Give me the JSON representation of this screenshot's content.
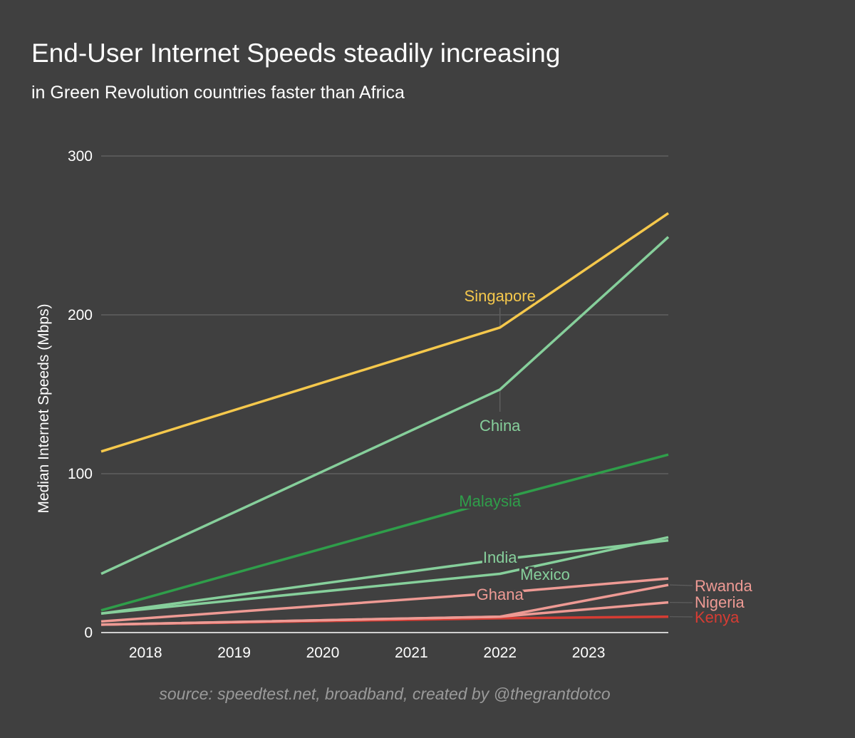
{
  "title": "End-User Internet Speeds steadily increasing",
  "subtitle": "in Green Revolution countries faster than Africa",
  "source": "source: speedtest.net, broadband, created by @thegrantdotco",
  "chart_data": {
    "type": "line",
    "ylabel": "Median Internet Speeds (Mbps)",
    "xlabel": "",
    "ylim": [
      0,
      300
    ],
    "yticks": [
      0,
      100,
      200,
      300
    ],
    "xticks": [
      2018,
      2019,
      2020,
      2021,
      2022,
      2023
    ],
    "xlim": [
      2017.5,
      2023.9
    ],
    "grid": true,
    "series": [
      {
        "name": "Singapore",
        "color": "#f5c84c",
        "x": [
          2017.5,
          2022,
          2023.9
        ],
        "y": [
          114,
          192,
          264
        ],
        "label_style": "above"
      },
      {
        "name": "China",
        "color": "#86cf9b",
        "x": [
          2017.5,
          2022,
          2023.9
        ],
        "y": [
          37,
          153,
          249
        ],
        "label_style": "below"
      },
      {
        "name": "Malaysia",
        "color": "#2f9e4a",
        "x": [
          2017.5,
          2022,
          2023.9
        ],
        "y": [
          14,
          84,
          112
        ],
        "label_style": "inline"
      },
      {
        "name": "India",
        "color": "#86cf9b",
        "x": [
          2017.5,
          2022,
          2023.9
        ],
        "y": [
          12,
          46,
          58
        ],
        "label_style": "inline"
      },
      {
        "name": "Mexico",
        "color": "#86cf9b",
        "x": [
          2017.5,
          2022,
          2023.9
        ],
        "y": [
          12,
          37,
          60
        ],
        "label_style": "below-right"
      },
      {
        "name": "Ghana",
        "color": "#ee9a94",
        "x": [
          2017.5,
          2022,
          2023.9
        ],
        "y": [
          7,
          25,
          34
        ],
        "label_style": "inline"
      },
      {
        "name": "Rwanda",
        "color": "#ee9a94",
        "x": [
          2017.5,
          2022,
          2023.9
        ],
        "y": [
          5,
          10,
          30
        ],
        "label_style": "end"
      },
      {
        "name": "Nigeria",
        "color": "#ee9a94",
        "x": [
          2017.5,
          2022,
          2023.9
        ],
        "y": [
          5,
          10,
          19
        ],
        "label_style": "end"
      },
      {
        "name": "Kenya",
        "color": "#d63c33",
        "x": [
          2017.5,
          2022,
          2023.9
        ],
        "y": [
          5,
          9,
          10
        ],
        "label_style": "end"
      }
    ]
  }
}
